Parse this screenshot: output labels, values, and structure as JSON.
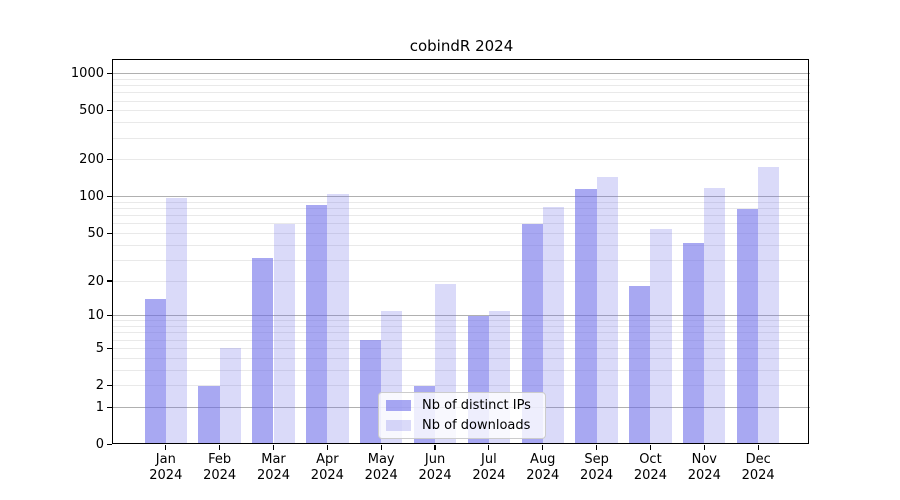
{
  "chart_data": {
    "type": "bar",
    "title": "cobindR 2024",
    "year": "2024",
    "categories": [
      "Jan",
      "Feb",
      "Mar",
      "Apr",
      "May",
      "Jun",
      "Jul",
      "Aug",
      "Sep",
      "Oct",
      "Nov",
      "Dec"
    ],
    "series": [
      {
        "name": "Nb of distinct IPs",
        "values": [
          14,
          2,
          31,
          85,
          6,
          2,
          10,
          60,
          115,
          18,
          42,
          80
        ]
      },
      {
        "name": "Nb of downloads",
        "values": [
          97,
          5,
          60,
          105,
          11,
          19,
          11,
          83,
          145,
          54,
          117,
          174
        ]
      }
    ],
    "xlabel": "",
    "ylabel": "",
    "yscale": "log10(1+x)",
    "yticks": [
      0,
      1,
      2,
      5,
      10,
      20,
      50,
      100,
      200,
      500,
      1000
    ],
    "grid_major": [
      1,
      10,
      100,
      1000
    ],
    "grid_minor": [
      2,
      3,
      4,
      5,
      6,
      7,
      8,
      9,
      20,
      30,
      40,
      50,
      60,
      70,
      80,
      90,
      200,
      300,
      400,
      500,
      600,
      700,
      800,
      900
    ],
    "ylim": [
      0,
      1278
    ],
    "grid": true,
    "legend_position": "lower center"
  },
  "colors": {
    "ips_bar": "rgba(102,102,232,0.57)",
    "downloads_bar": "rgba(102,102,232,0.24)",
    "major_grid": "#b0b0b0",
    "minor_grid": "#e9e9e9",
    "axis": "#000000",
    "text": "#000000",
    "legend_border": "#cccccc",
    "legend_bg": "rgba(255,255,255,0.8)"
  }
}
